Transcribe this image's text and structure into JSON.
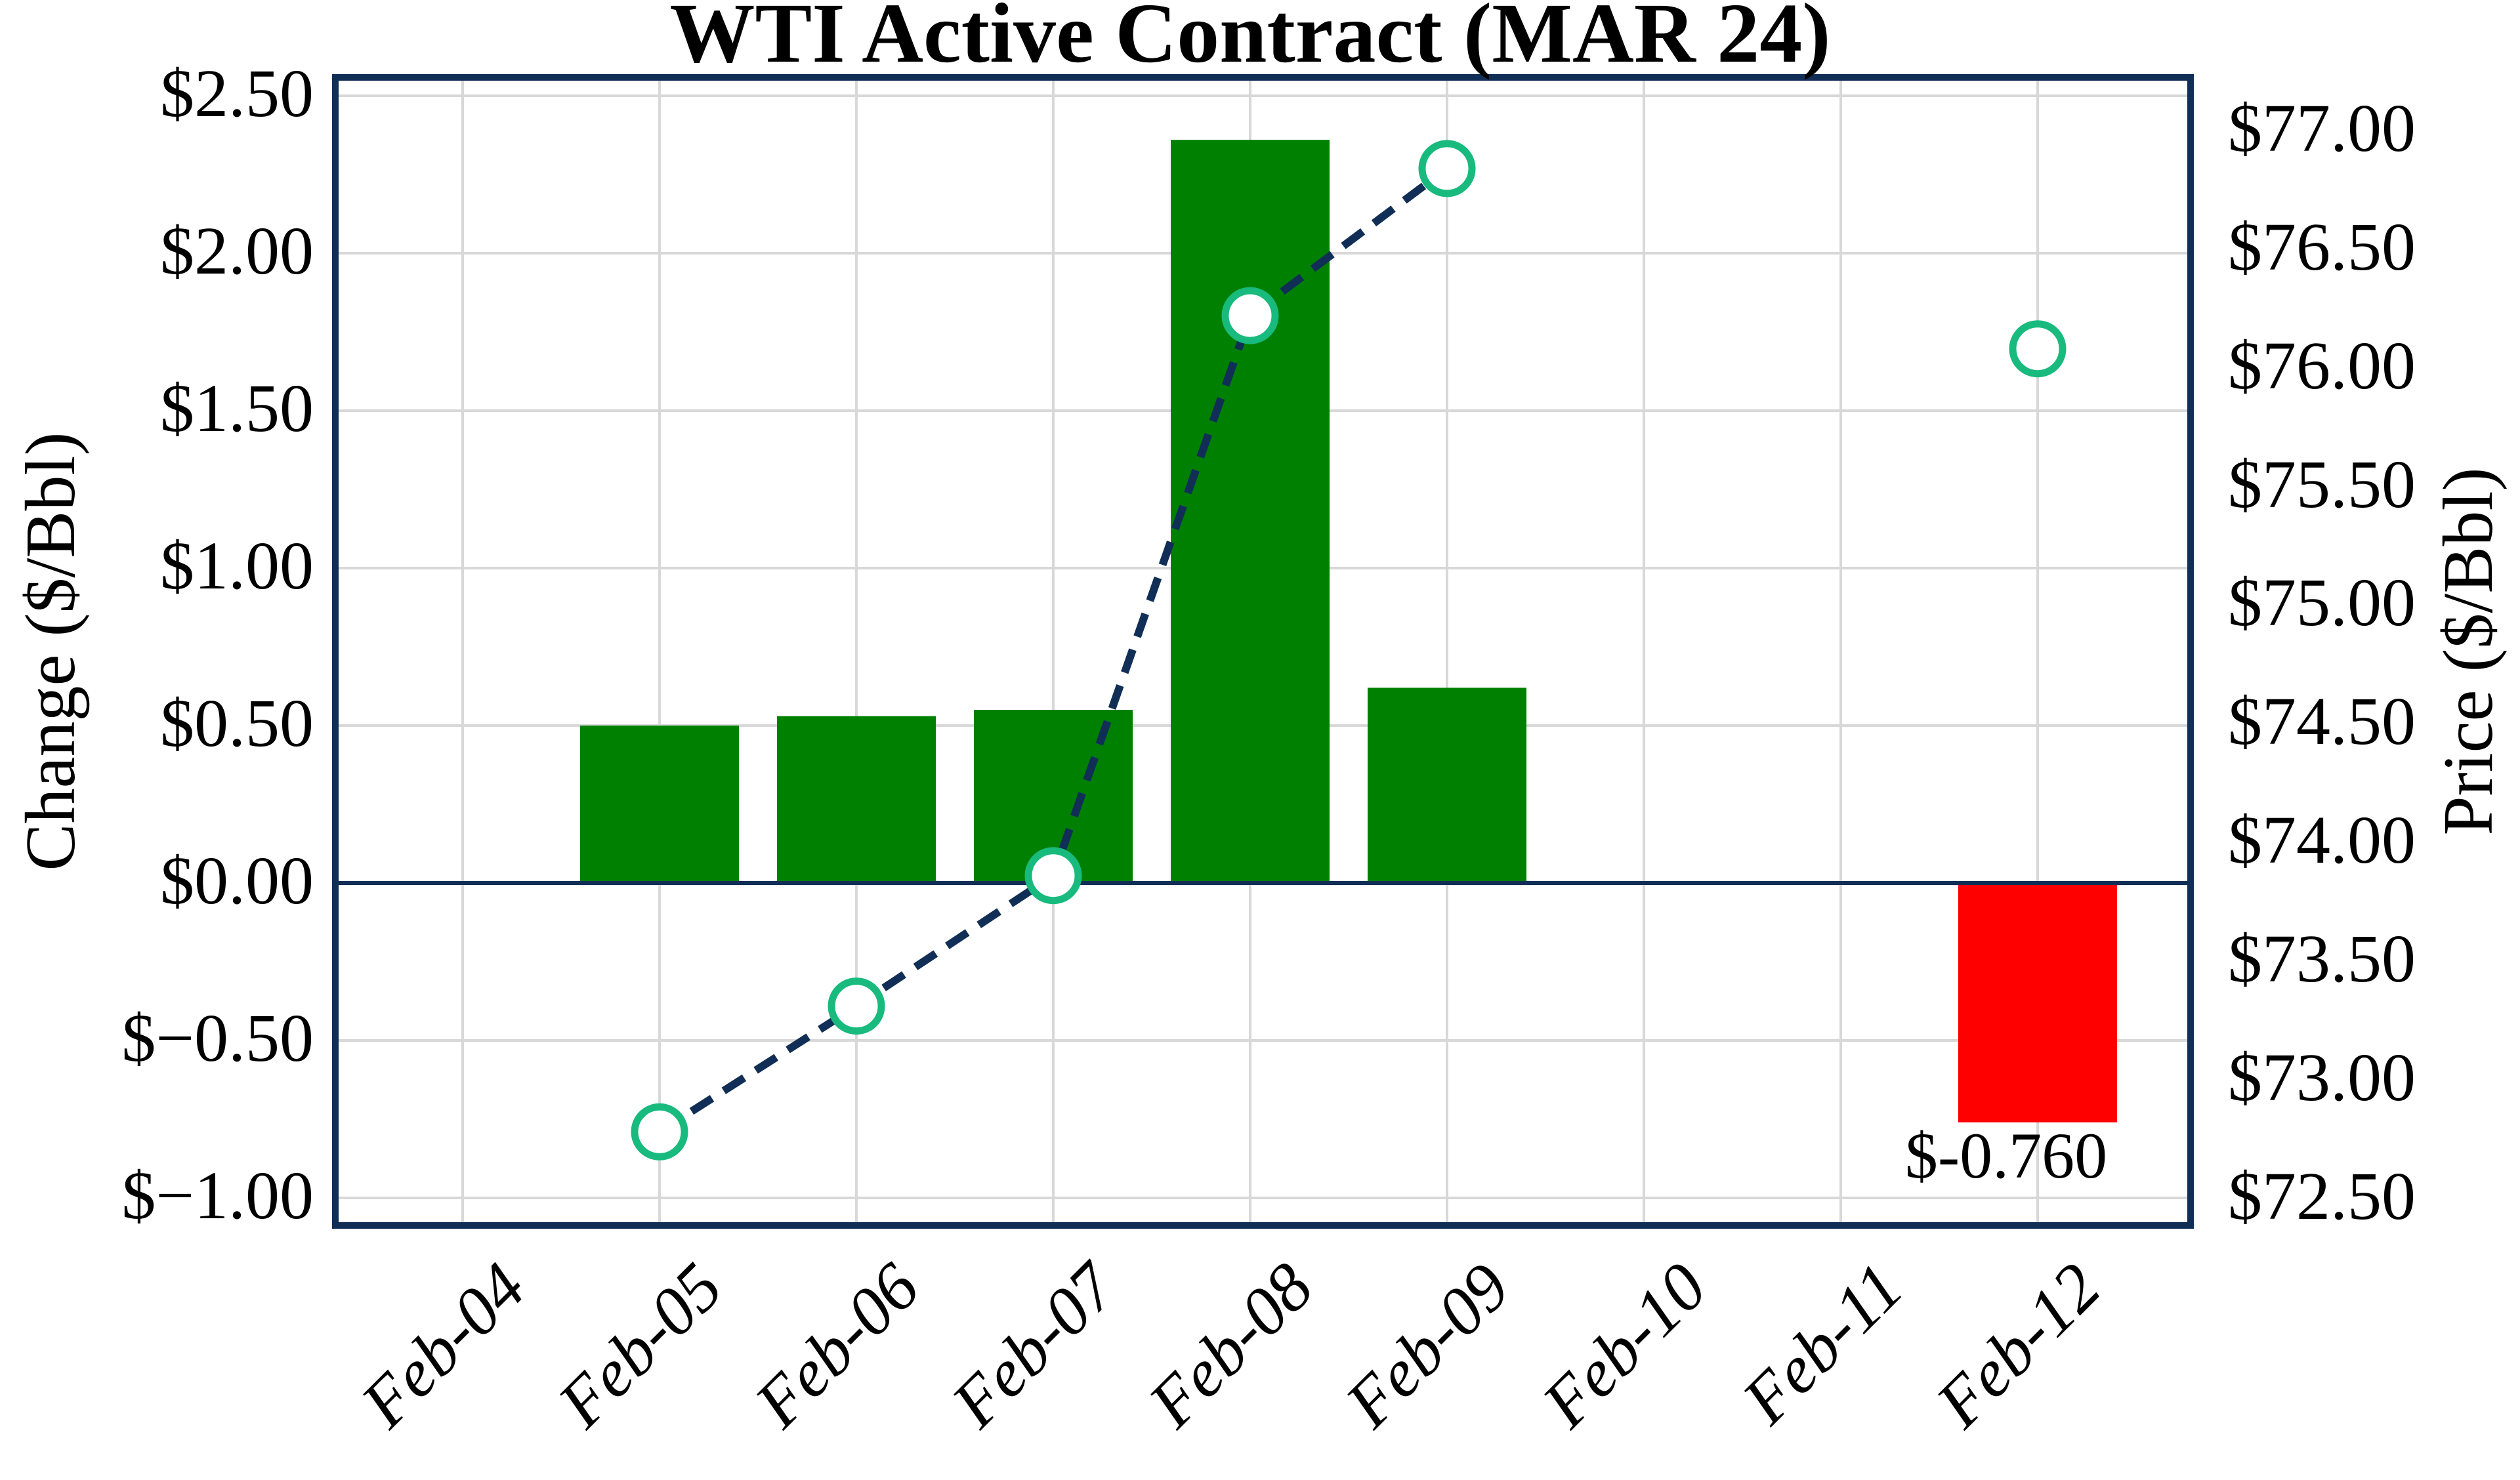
{
  "page": {
    "background": "#ffffff"
  },
  "chart_data": {
    "type": "bar+line",
    "title": "WTI Active Contract (MAR 24)",
    "categories": [
      "Feb-04",
      "Feb-05",
      "Feb-06",
      "Feb-07",
      "Feb-08",
      "Feb-09",
      "Feb-10",
      "Feb-11",
      "Feb-12"
    ],
    "series": [
      {
        "name": "Daily change",
        "type": "bar",
        "axis": "left",
        "values": [
          null,
          0.5,
          0.53,
          0.55,
          2.36,
          0.62,
          null,
          null,
          -0.76
        ],
        "positive_color": "#008000",
        "negative_color": "#ff0000"
      },
      {
        "name": "Price",
        "type": "line",
        "axis": "right",
        "values": [
          null,
          72.78,
          73.31,
          73.86,
          76.22,
          76.84,
          null,
          null,
          76.08
        ],
        "color": "#112f56",
        "style": "dashed",
        "marker": "open-circle",
        "marker_edge_color": "#19ba7d",
        "marker_fill": "#ffffff"
      }
    ],
    "left_axis": {
      "label": "Change ($/Bbl)",
      "tick_labels": [
        "$2.50",
        "$2.00",
        "$1.50",
        "$1.00",
        "$0.50",
        "$0.00",
        "$−0.50",
        "$−1.00"
      ],
      "tick_values": [
        2.5,
        2.0,
        1.5,
        1.0,
        0.5,
        0.0,
        -0.5,
        -1.0
      ],
      "max": 2.5583,
      "min": -1.0875
    },
    "right_axis": {
      "label": "Price ($/Bbl)",
      "tick_labels": [
        "$77.00",
        "$76.50",
        "$76.00",
        "$75.50",
        "$75.00",
        "$74.50",
        "$74.00",
        "$73.50",
        "$73.00",
        "$72.50"
      ],
      "tick_values": [
        77.0,
        76.5,
        76.0,
        75.5,
        75.0,
        74.5,
        74.0,
        73.5,
        73.0,
        72.5
      ],
      "max": 77.2239,
      "min": 72.3856
    },
    "annotation": {
      "text": "$-0.760",
      "category": "Feb-12",
      "category_index": 8
    },
    "grid": true,
    "legend": "none",
    "zero_line": true,
    "frame_color": "#112f56",
    "grid_color": "#d8d8d8"
  }
}
